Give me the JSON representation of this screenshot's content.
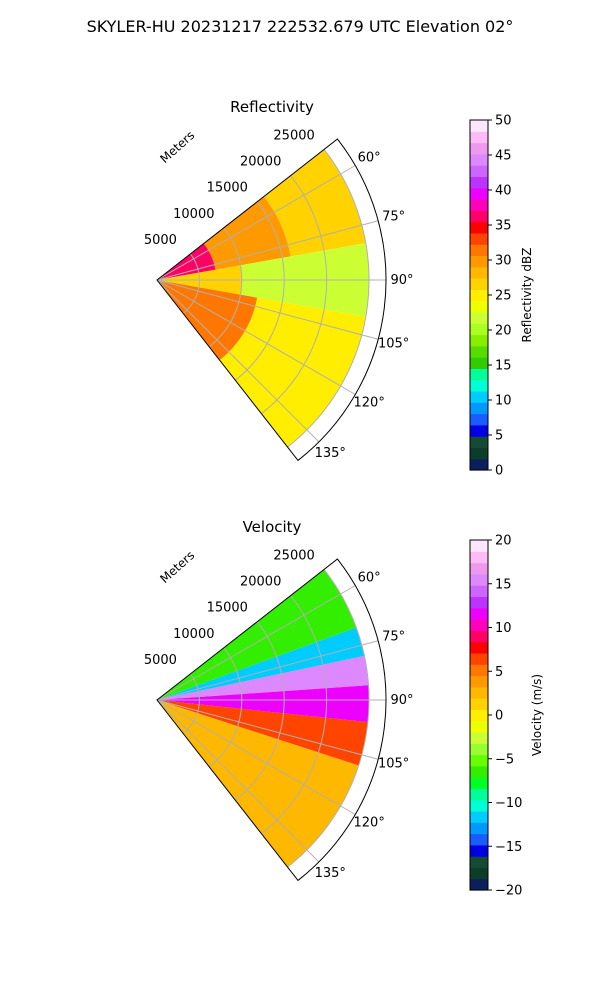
{
  "suptitle": "SKYLER-HU  20231217  222532.679 UTC Elevation 02°",
  "chart_data": [
    {
      "type": "heatmap",
      "subtype": "polar-sector",
      "title": "Reflectivity",
      "theta_range_deg": [
        52,
        142
      ],
      "theta_ticks": [
        "60°",
        "75°",
        "90°",
        "105°",
        "120°",
        "135°"
      ],
      "theta_tick_values": [
        60,
        75,
        90,
        105,
        120,
        135
      ],
      "r_label": "Meters",
      "r_max": 27000,
      "r_ticks": [
        "5000",
        "10000",
        "15000",
        "20000",
        "25000"
      ],
      "r_tick_values": [
        5000,
        10000,
        15000,
        20000,
        25000
      ],
      "grid": true,
      "colorbar": {
        "label": "Reflectivity dBZ",
        "min": 0,
        "max": 50,
        "ticks": [
          "0",
          "5",
          "10",
          "15",
          "20",
          "25",
          "30",
          "35",
          "40",
          "45",
          "50"
        ],
        "tick_values": [
          0,
          5,
          10,
          15,
          20,
          25,
          30,
          35,
          40,
          45,
          50
        ],
        "colors": [
          "#0a1f5c",
          "#0b3d2a",
          "#174a32",
          "#0000e6",
          "#1a5cff",
          "#0099ff",
          "#00ccff",
          "#00ffd5",
          "#00ff99",
          "#33cc00",
          "#55dd00",
          "#88ee00",
          "#aaff22",
          "#ccff33",
          "#eeff00",
          "#ffee00",
          "#ffd200",
          "#ffb800",
          "#ff9900",
          "#ff7700",
          "#ff4400",
          "#ff0000",
          "#ff0066",
          "#ff00bb",
          "#ee00ff",
          "#bb33ff",
          "#cc66ff",
          "#dd88ff",
          "#ee99ee",
          "#ffbbf5",
          "#ffe6ff"
        ]
      },
      "field_regions": [
        {
          "theta": [
            52,
            80
          ],
          "r": [
            0,
            7000
          ],
          "value": 36
        },
        {
          "theta": [
            52,
            80
          ],
          "r": [
            7000,
            16000
          ],
          "value": 30
        },
        {
          "theta": [
            52,
            80
          ],
          "r": [
            16000,
            25000
          ],
          "value": 26
        },
        {
          "theta": [
            80,
            100
          ],
          "r": [
            0,
            10000
          ],
          "value": 27
        },
        {
          "theta": [
            80,
            100
          ],
          "r": [
            10000,
            25000
          ],
          "value": 21
        },
        {
          "theta": [
            100,
            142
          ],
          "r": [
            0,
            12000
          ],
          "value": 31
        },
        {
          "theta": [
            100,
            142
          ],
          "r": [
            12000,
            25000
          ],
          "value": 25
        }
      ]
    },
    {
      "type": "heatmap",
      "subtype": "polar-sector",
      "title": "Velocity",
      "theta_range_deg": [
        52,
        142
      ],
      "theta_ticks": [
        "60°",
        "75°",
        "90°",
        "105°",
        "120°",
        "135°"
      ],
      "theta_tick_values": [
        60,
        75,
        90,
        105,
        120,
        135
      ],
      "r_label": "Meters",
      "r_max": 27000,
      "r_ticks": [
        "5000",
        "10000",
        "15000",
        "20000",
        "25000"
      ],
      "r_tick_values": [
        5000,
        10000,
        15000,
        20000,
        25000
      ],
      "grid": true,
      "colorbar": {
        "label": "Velocity (m/s)",
        "min": -20,
        "max": 20,
        "ticks": [
          "−20",
          "−15",
          "−10",
          "−5",
          "0",
          "5",
          "10",
          "15",
          "20"
        ],
        "tick_values": [
          -20,
          -15,
          -10,
          -5,
          0,
          5,
          10,
          15,
          20
        ],
        "colors": [
          "#0a1f5c",
          "#0b3d2a",
          "#174a32",
          "#0000e6",
          "#1a5cff",
          "#0099ff",
          "#00ccff",
          "#00ffd5",
          "#00ff99",
          "#00ff22",
          "#33ee00",
          "#66ff00",
          "#99ff33",
          "#ccff33",
          "#eeff00",
          "#ffee00",
          "#ffd200",
          "#ffb800",
          "#ff9900",
          "#ff7700",
          "#ff4400",
          "#ff0000",
          "#ff0066",
          "#ff00bb",
          "#ee00ff",
          "#bb33ff",
          "#cc66ff",
          "#dd88ff",
          "#ee99ee",
          "#ffbbf5",
          "#ffe6ff"
        ]
      },
      "field_regions": [
        {
          "theta": [
            52,
            70
          ],
          "r": [
            0,
            25000
          ],
          "value": -6
        },
        {
          "theta": [
            70,
            78
          ],
          "r": [
            0,
            25000
          ],
          "value": -11
        },
        {
          "theta": [
            78,
            86
          ],
          "r": [
            0,
            25000
          ],
          "value": 15
        },
        {
          "theta": [
            86,
            96
          ],
          "r": [
            0,
            25000
          ],
          "value": 11
        },
        {
          "theta": [
            96,
            108
          ],
          "r": [
            0,
            25000
          ],
          "value": 7
        },
        {
          "theta": [
            108,
            142
          ],
          "r": [
            0,
            25000
          ],
          "value": 2
        }
      ]
    }
  ]
}
